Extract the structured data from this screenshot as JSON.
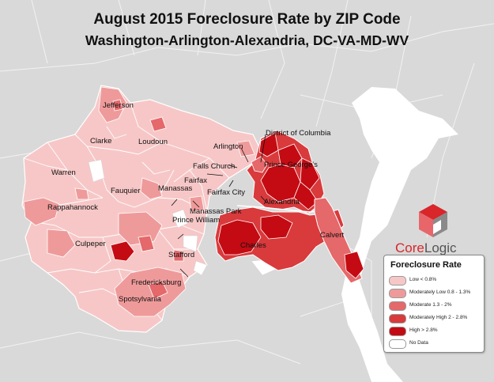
{
  "title": "August 2015 Foreclosure Rate by ZIP Code",
  "subtitle": "Washington-Arlington-Alexandria, DC-VA-MD-WV",
  "colors": {
    "background_land": "#dcdcdc",
    "outer_border": "#ffffff",
    "low": "#f7c7c7",
    "moderately_low": "#ef9a9a",
    "moderate": "#e5686a",
    "moderately_high": "#d93a3c",
    "high": "#c40b13",
    "no_data": "#ffffff",
    "water": "#ffffff"
  },
  "labels": {
    "jefferson": "Jefferson",
    "clarke": "Clarke",
    "loudoun": "Loudoun",
    "warren": "Warren",
    "fauquier": "Fauquier",
    "rappahannock": "Rappahannock",
    "culpeper": "Culpeper",
    "manassas": "Manassas",
    "manassas_park": "Manassas Park",
    "prince_william": "Prince William",
    "fairfax": "Fairfax",
    "fairfax_city": "Fairfax City",
    "falls_church": "Falls Church",
    "arlington": "Arlington",
    "district_of_columbia": "District of Columbia",
    "prince_georges": "Prince George's",
    "alexandria": "Alexandria",
    "charles": "Charles",
    "calvert": "Calvert",
    "stafford": "Stafford",
    "fredericksburg": "Fredericksburg",
    "spotsylvania": "Spotsylvania"
  },
  "logo": {
    "core": "Core",
    "logic": "Logic",
    "icon": "corelogic-cube-icon"
  },
  "legend": {
    "title": "Foreclosure Rate",
    "items": [
      {
        "label": "Low  < 0.8%",
        "color": "#f7c7c7"
      },
      {
        "label": "Moderately Low  0.8 - 1.3%",
        "color": "#ef9a9a"
      },
      {
        "label": "Moderate  1.3 - 2%",
        "color": "#e5686a"
      },
      {
        "label": "Moderately High  2 - 2.8%",
        "color": "#d93a3c"
      },
      {
        "label": "High  > 2.8%",
        "color": "#c40b13"
      },
      {
        "label": "No Data",
        "color": "#ffffff"
      }
    ]
  }
}
